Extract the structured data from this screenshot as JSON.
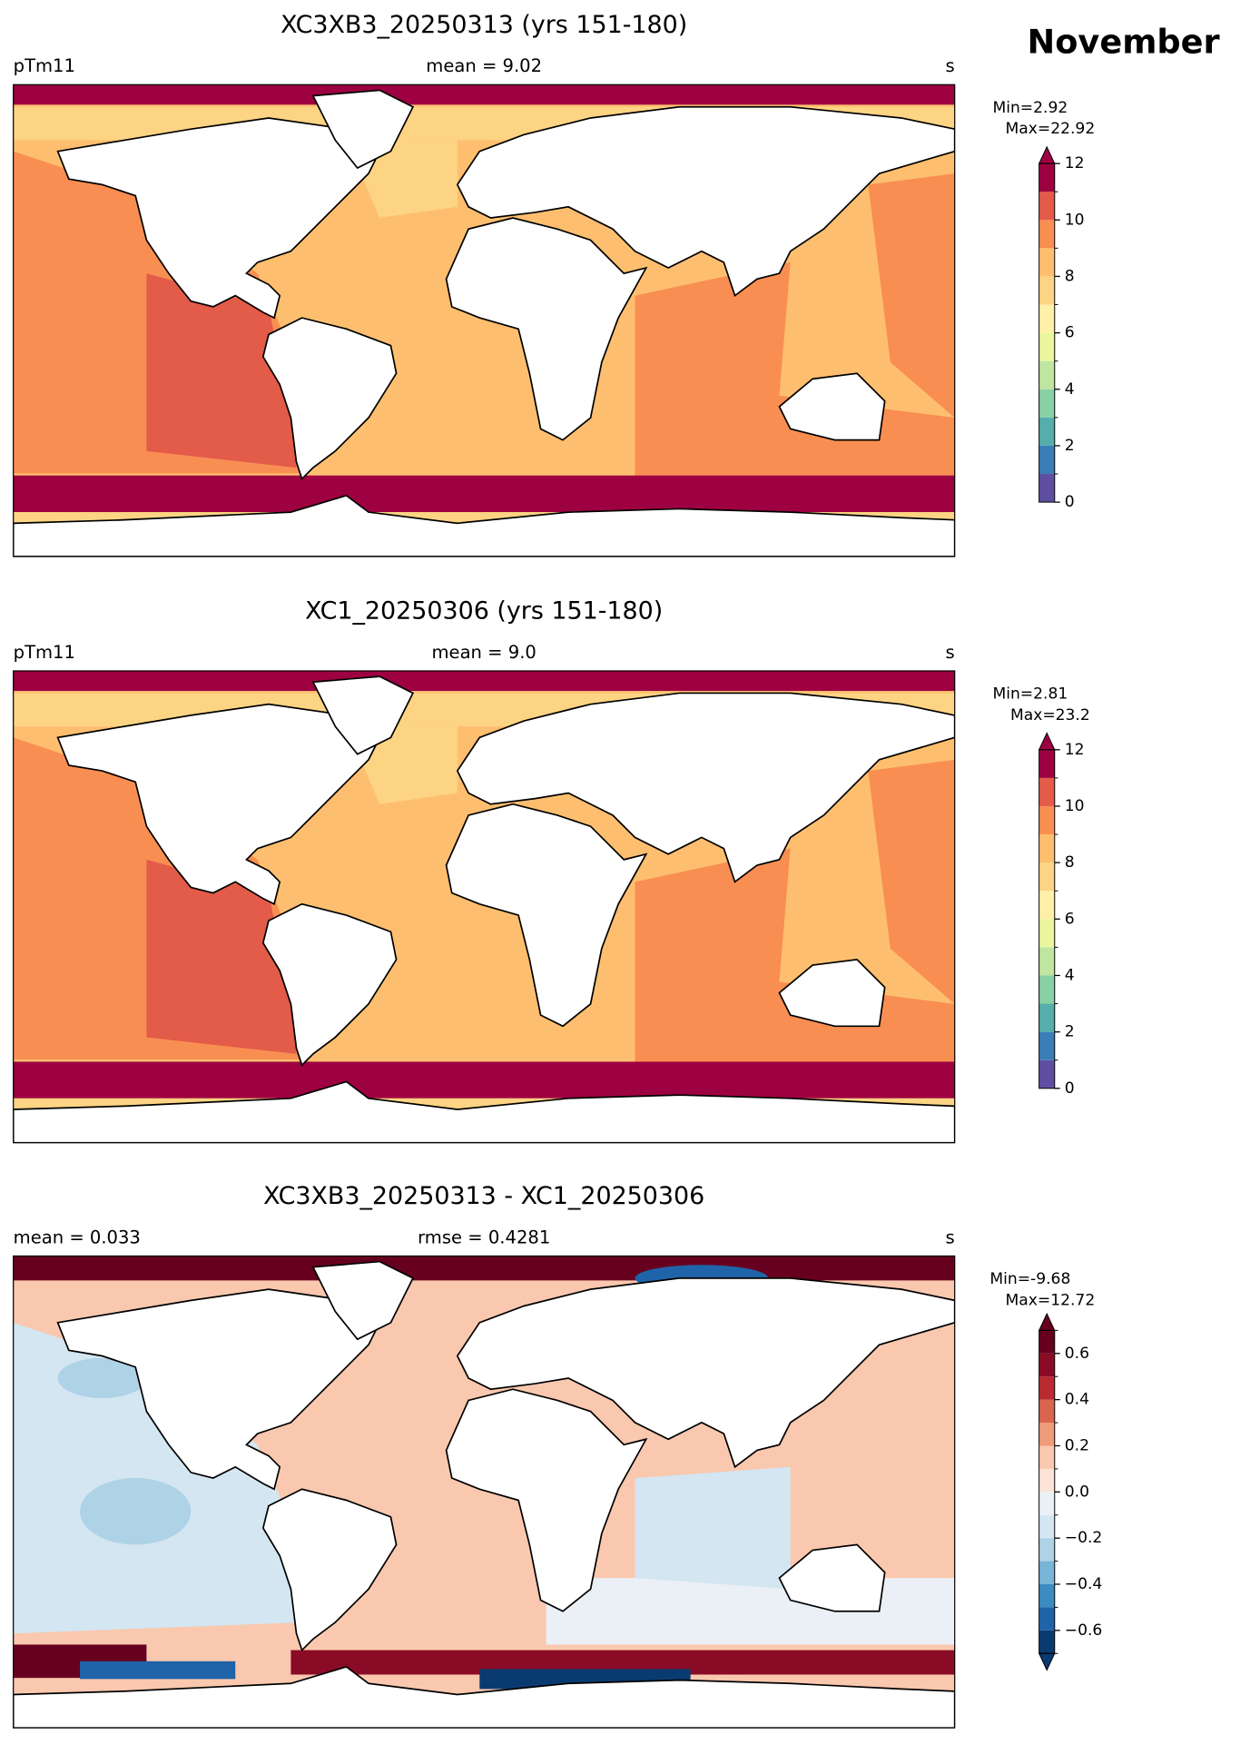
{
  "figure_title": "November",
  "panels": [
    {
      "title": "XC3XB3_20250313 (yrs 151-180)",
      "left": "pTm11",
      "center": "mean = 9.02",
      "right": "s",
      "min_label": "Min=2.92",
      "max_label": "Max=22.92",
      "colorbar": {
        "lim": [
          0,
          12
        ],
        "ticks": [
          0,
          2,
          4,
          6,
          8,
          10,
          12
        ],
        "levels": [
          0,
          1,
          2,
          3,
          4,
          5,
          6,
          7,
          8,
          9,
          10,
          11,
          12
        ],
        "colors": [
          "#5e4fa2",
          "#3a7eb8",
          "#54aeac",
          "#89d0a4",
          "#c0e5a0",
          "#eaf69e",
          "#fef0a7",
          "#fdd483",
          "#fdbf6f",
          "#f98e52",
          "#e35b49",
          "#9e0142"
        ],
        "extend": "max"
      }
    },
    {
      "title": "XC1_20250306 (yrs 151-180)",
      "left": "pTm11",
      "center": "mean = 9.0",
      "right": "s",
      "min_label": "Min=2.81",
      "max_label": "Max=23.2",
      "colorbar": {
        "lim": [
          0,
          12
        ],
        "ticks": [
          0,
          2,
          4,
          6,
          8,
          10,
          12
        ],
        "levels": [
          0,
          1,
          2,
          3,
          4,
          5,
          6,
          7,
          8,
          9,
          10,
          11,
          12
        ],
        "colors": [
          "#5e4fa2",
          "#3a7eb8",
          "#54aeac",
          "#89d0a4",
          "#c0e5a0",
          "#eaf69e",
          "#fef0a7",
          "#fdd483",
          "#fdbf6f",
          "#f98e52",
          "#e35b49",
          "#9e0142"
        ],
        "extend": "max"
      }
    },
    {
      "title": "XC3XB3_20250313 - XC1_20250306",
      "left": "mean = 0.033",
      "center": "rmse = 0.4281",
      "right": "s",
      "min_label": "Min=-9.68",
      "max_label": "Max=12.72",
      "colorbar": {
        "lim": [
          -0.7,
          0.7
        ],
        "ticks": [
          {
            "value": -0.6,
            "label": "−0.6"
          },
          {
            "value": -0.4,
            "label": "−0.4"
          },
          {
            "value": -0.2,
            "label": "−0.2"
          },
          {
            "value": 0,
            "label": "0.0"
          },
          0.2,
          0.4,
          0.6
        ],
        "levels": [
          -0.7,
          -0.6,
          -0.5,
          -0.4,
          -0.3,
          -0.2,
          -0.1,
          0,
          0.1,
          0.2,
          0.3,
          0.4,
          0.5,
          0.6,
          0.7
        ],
        "colors": [
          "#0a3b70",
          "#1f63a8",
          "#3c8bc3",
          "#79b5d8",
          "#aed2e6",
          "#d3e6f1",
          "#eaf0f5",
          "#fbe4d7",
          "#f9c8ae",
          "#f09b7a",
          "#d9654f",
          "#b92a31",
          "#8a0b25",
          "#67001f"
        ],
        "extend": "both"
      }
    }
  ]
}
